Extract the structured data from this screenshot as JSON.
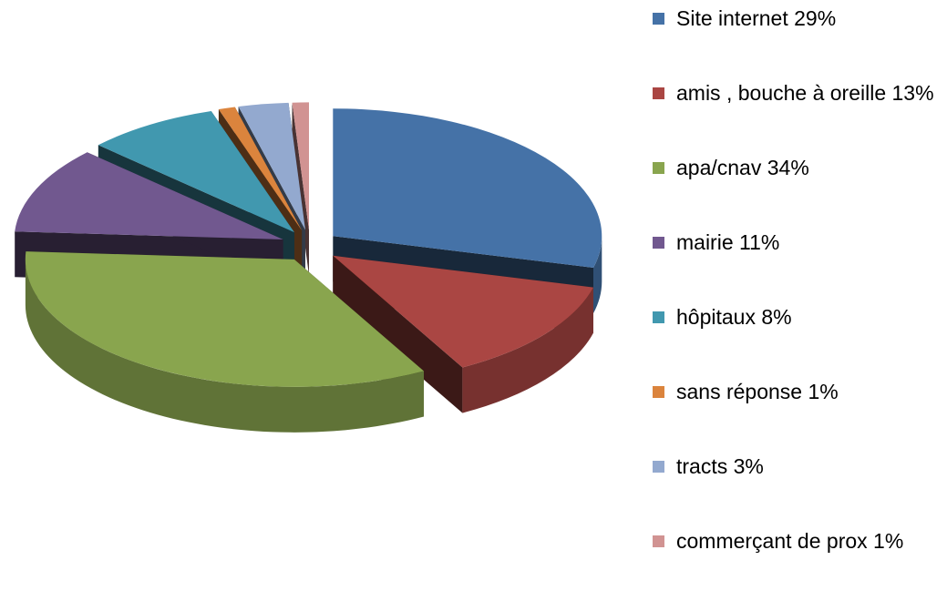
{
  "chart_data": {
    "type": "pie",
    "categories": [
      "Site internet",
      "amis , bouche à oreille",
      "apa/cnav",
      "mairie",
      "hôpitaux",
      "sans réponse",
      "tracts",
      "commerçant de prox"
    ],
    "values": [
      29,
      13,
      34,
      11,
      8,
      1,
      3,
      1
    ],
    "value_labels": [
      "29%",
      "13%",
      "34%",
      "11%",
      "8%",
      "1%",
      "3%",
      "1%"
    ],
    "colors": [
      "#4572a7",
      "#aa4643",
      "#89a54e",
      "#71588f",
      "#4198af",
      "#db843d",
      "#93a9cf",
      "#d19392"
    ],
    "legend": "right"
  }
}
